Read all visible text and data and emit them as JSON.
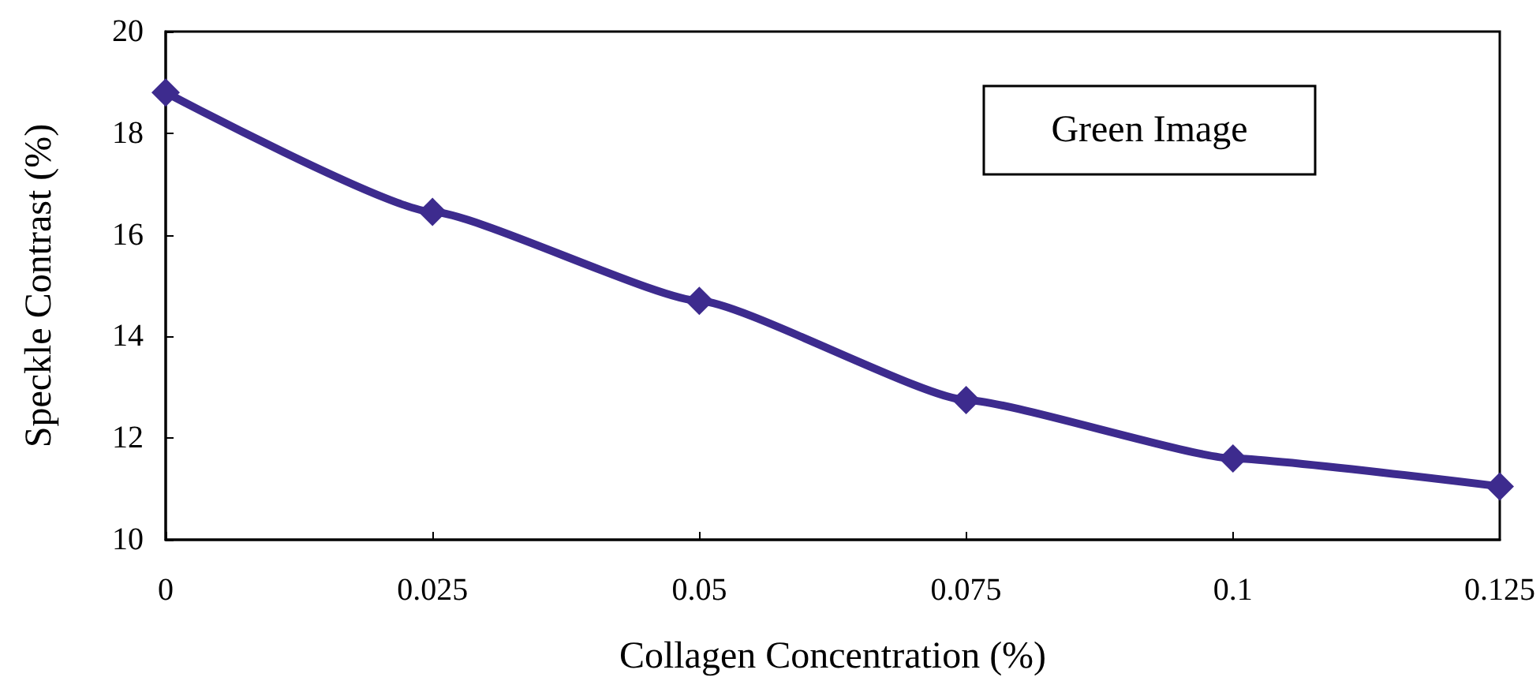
{
  "chart_data": {
    "type": "line",
    "xlabel": "Collagen Concentration (%)",
    "ylabel": "Speckle Contrast (%)",
    "x": [
      0,
      0.025,
      0.05,
      0.075,
      0.1,
      0.125
    ],
    "series": [
      {
        "color": "#3d2b8e",
        "values": [
          18.8,
          16.45,
          14.7,
          12.75,
          11.6,
          11.05
        ]
      }
    ],
    "xlim": [
      0,
      0.125
    ],
    "xticks": [
      0,
      0.025,
      0.05,
      0.075,
      0.1,
      0.125
    ],
    "ylim": [
      10,
      20
    ],
    "yticks": [
      10,
      12,
      14,
      16,
      18,
      20
    ],
    "annotations": [
      "Green Image"
    ],
    "grid": false,
    "marker": "diamond",
    "line_style": "solid"
  }
}
